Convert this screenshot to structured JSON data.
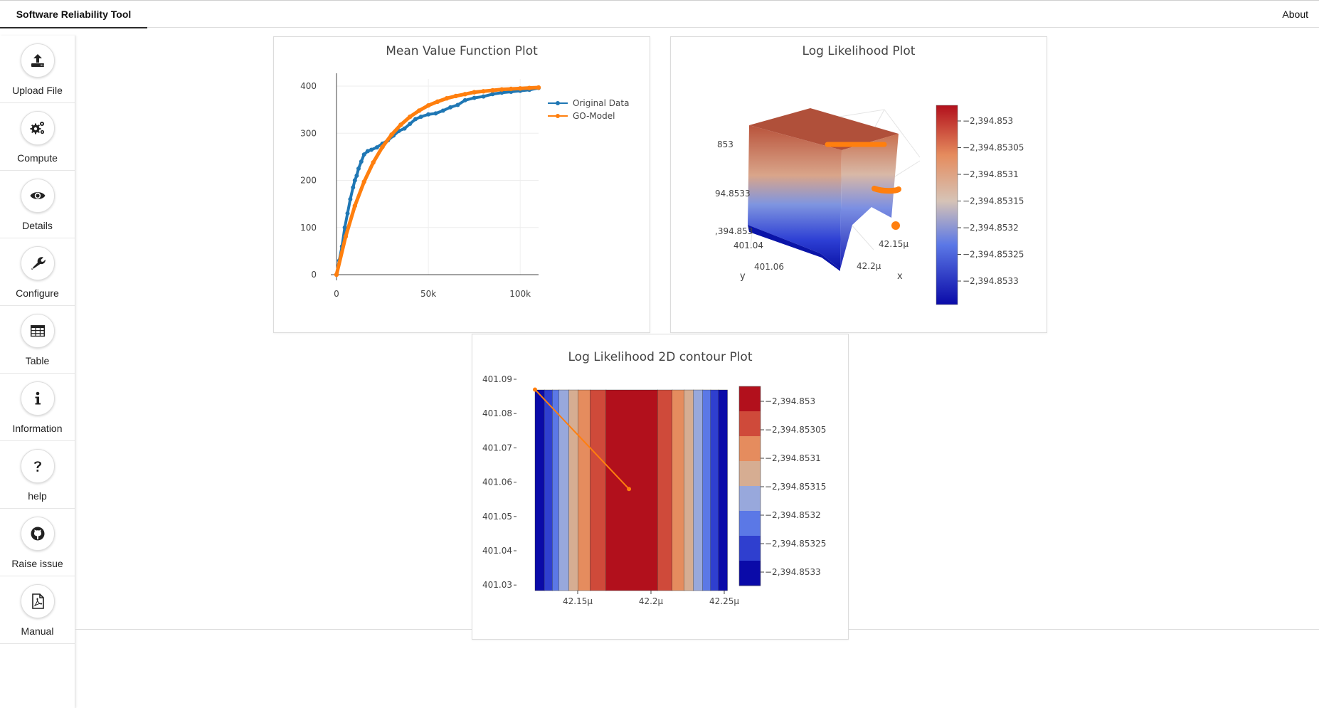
{
  "app": {
    "title": "Software Reliability Tool",
    "about": "About"
  },
  "sidebar": {
    "items": [
      {
        "label": "Upload File",
        "icon": "upload-icon"
      },
      {
        "label": "Compute",
        "icon": "gears-icon"
      },
      {
        "label": "Details",
        "icon": "eye-icon"
      },
      {
        "label": "Configure",
        "icon": "wrench-icon"
      },
      {
        "label": "Table",
        "icon": "table-icon"
      },
      {
        "label": "Information",
        "icon": "info-icon"
      },
      {
        "label": "help",
        "icon": "question-icon"
      },
      {
        "label": "Raise issue",
        "icon": "github-icon"
      },
      {
        "label": "Manual",
        "icon": "pdf-icon"
      }
    ]
  },
  "colors": {
    "original": "#1f77b4",
    "model": "#ff7f0e"
  },
  "chart_data": [
    {
      "type": "line",
      "title": "Mean Value Function Plot",
      "xlim": [
        0,
        110000
      ],
      "ylim": [
        0,
        400
      ],
      "xticks": [
        "0",
        "50k",
        "100k"
      ],
      "yticks": [
        "0",
        "100",
        "200",
        "300",
        "400"
      ],
      "legend_position": "top-right",
      "grid": true,
      "series": [
        {
          "name": "Original Data",
          "x": [
            0,
            1500,
            3000,
            4500,
            6000,
            7500,
            9000,
            10000,
            11000,
            12000,
            13500,
            15000,
            17000,
            19000,
            22000,
            25000,
            28000,
            31000,
            34000,
            37000,
            40000,
            43000,
            46000,
            50000,
            54000,
            58000,
            62000,
            66000,
            70000,
            75000,
            80000,
            85000,
            90000,
            95000,
            100000,
            105000,
            110000
          ],
          "y": [
            0,
            30,
            60,
            100,
            130,
            160,
            185,
            200,
            210,
            225,
            240,
            255,
            262,
            265,
            270,
            278,
            285,
            295,
            305,
            310,
            320,
            330,
            335,
            340,
            342,
            348,
            355,
            360,
            370,
            375,
            378,
            383,
            386,
            388,
            390,
            392,
            396
          ]
        },
        {
          "name": "GO-Model",
          "x": [
            0,
            5000,
            10000,
            15000,
            20000,
            25000,
            30000,
            35000,
            40000,
            45000,
            50000,
            55000,
            60000,
            65000,
            70000,
            75000,
            80000,
            85000,
            90000,
            95000,
            100000,
            105000,
            110000
          ],
          "y": [
            0,
            81,
            146,
            197,
            238,
            271,
            297,
            318,
            335,
            348,
            359,
            367,
            374,
            379,
            383,
            387,
            389,
            391,
            393,
            394,
            395,
            396,
            397
          ]
        }
      ]
    },
    {
      "type": "surface",
      "title": "Log Likelihood Plot",
      "xaxis_label": "x",
      "yaxis_label": "y",
      "xticks": [
        "42.15μ",
        "42.2μ"
      ],
      "yticks": [
        "401.04",
        "401.06"
      ],
      "zticks": [
        "853",
        "94.8533",
        ",394.853"
      ],
      "colorbar": [
        "−2,394.853",
        "−2,394.85305",
        "−2,394.8531",
        "−2,394.85315",
        "−2,394.8532",
        "−2,394.85325",
        "−2,394.8533"
      ]
    },
    {
      "type": "contour",
      "title": "Log Likelihood 2D contour Plot",
      "xticks": [
        "42.15μ",
        "42.2μ",
        "42.25μ"
      ],
      "yticks": [
        "401.09",
        "401.08",
        "401.07",
        "401.06",
        "401.05",
        "401.04",
        "401.03"
      ],
      "colorbar": [
        "−2,394.853",
        "−2,394.85305",
        "−2,394.8531",
        "−2,394.85315",
        "−2,394.8532",
        "−2,394.85325",
        "−2,394.8533"
      ],
      "bands": [
        "#0a0aa8",
        "#2f3fcf",
        "#5b78e6",
        "#98a8dc",
        "#d6ad92",
        "#e58c5e",
        "#cf4a3a",
        "#b2101c",
        "#b2101c",
        "#cf4a3a",
        "#e58c5e",
        "#d6ad92",
        "#98a8dc",
        "#5b78e6",
        "#2f3fcf",
        "#0a0aa8"
      ],
      "path": [
        [
          42.12,
          401.087
        ],
        [
          42.185,
          401.058
        ]
      ]
    }
  ]
}
